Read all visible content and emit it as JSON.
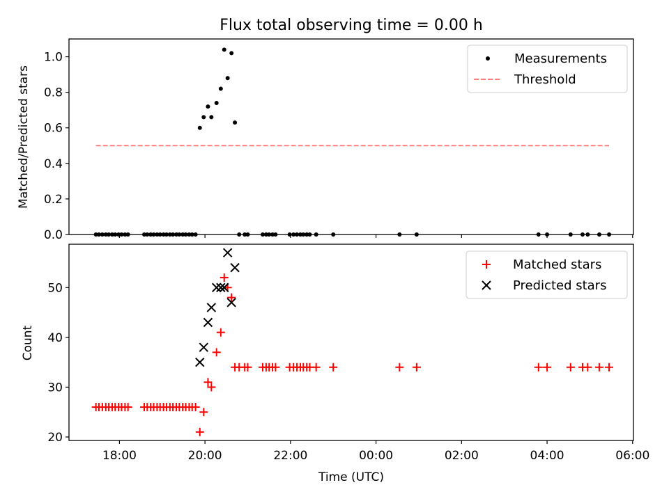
{
  "figure": {
    "title": "Flux total observing time = 0.00 h",
    "shared_xlabel": "Time (UTC)",
    "x_tick_labels": [
      "18:00",
      "20:00",
      "22:00",
      "00:00",
      "02:00",
      "04:00",
      "06:00"
    ]
  },
  "chart_data": [
    {
      "type": "scatter",
      "title": "Flux total observing time = 0.00 h",
      "xlabel": "",
      "ylabel": "Matched/Predicted stars",
      "x_unit": "hours since 00:00 UTC (negative = previous evening)",
      "xlim": [
        -7.18,
        6.02
      ],
      "ylim": [
        0.0,
        1.1
      ],
      "y_ticks": [
        0.0,
        0.2,
        0.4,
        0.6,
        0.8,
        1.0
      ],
      "y_tick_labels": [
        "0.0",
        "0.2",
        "0.4",
        "0.6",
        "0.8",
        "1.0"
      ],
      "grid": false,
      "legend_position": "top-right",
      "series": [
        {
          "name": "Measurements",
          "kind": "points",
          "color": "#000000",
          "points": [
            [
              -6.55,
              0.0
            ],
            [
              -6.48,
              0.0
            ],
            [
              -6.4,
              0.0
            ],
            [
              -6.32,
              0.0
            ],
            [
              -6.25,
              0.0
            ],
            [
              -6.17,
              0.0
            ],
            [
              -6.1,
              0.0
            ],
            [
              -6.02,
              0.0
            ],
            [
              -5.95,
              0.0
            ],
            [
              -5.87,
              0.0
            ],
            [
              -5.8,
              0.0
            ],
            [
              -5.42,
              0.0
            ],
            [
              -5.35,
              0.0
            ],
            [
              -5.27,
              0.0
            ],
            [
              -5.2,
              0.0
            ],
            [
              -5.12,
              0.0
            ],
            [
              -5.05,
              0.0
            ],
            [
              -4.97,
              0.0
            ],
            [
              -4.9,
              0.0
            ],
            [
              -4.82,
              0.0
            ],
            [
              -4.75,
              0.0
            ],
            [
              -4.67,
              0.0
            ],
            [
              -4.6,
              0.0
            ],
            [
              -4.52,
              0.0
            ],
            [
              -4.45,
              0.0
            ],
            [
              -4.37,
              0.0
            ],
            [
              -4.3,
              0.0
            ],
            [
              -4.22,
              0.0
            ],
            [
              -4.12,
              0.6
            ],
            [
              -4.03,
              0.66
            ],
            [
              -3.93,
              0.72
            ],
            [
              -3.85,
              0.66
            ],
            [
              -3.73,
              0.74
            ],
            [
              -3.63,
              0.82
            ],
            [
              -3.55,
              1.04
            ],
            [
              -3.47,
              0.88
            ],
            [
              -3.38,
              1.02
            ],
            [
              -3.3,
              0.63
            ],
            [
              -3.2,
              0.0
            ],
            [
              -3.07,
              0.0
            ],
            [
              -3.0,
              0.0
            ],
            [
              -2.65,
              0.0
            ],
            [
              -2.57,
              0.0
            ],
            [
              -2.5,
              0.0
            ],
            [
              -2.42,
              0.0
            ],
            [
              -2.35,
              0.0
            ],
            [
              -2.02,
              0.0
            ],
            [
              -1.93,
              0.0
            ],
            [
              -1.85,
              0.0
            ],
            [
              -1.77,
              0.0
            ],
            [
              -1.7,
              0.0
            ],
            [
              -1.62,
              0.0
            ],
            [
              -1.55,
              0.0
            ],
            [
              -1.4,
              0.0
            ],
            [
              -1.0,
              0.0
            ],
            [
              0.55,
              0.0
            ],
            [
              0.95,
              0.0
            ],
            [
              3.8,
              0.0
            ],
            [
              4.0,
              0.0
            ],
            [
              4.55,
              0.0
            ],
            [
              4.83,
              0.0
            ],
            [
              4.95,
              0.0
            ],
            [
              5.22,
              0.0
            ],
            [
              5.45,
              0.0
            ]
          ]
        },
        {
          "name": "Threshold",
          "kind": "dashed-line",
          "color": "#ff7f7f",
          "x": [
            -6.55,
            5.45
          ],
          "y": [
            0.5,
            0.5
          ]
        }
      ]
    },
    {
      "type": "scatter",
      "xlabel": "Time (UTC)",
      "ylabel": "Count",
      "x_unit": "hours since 00:00 UTC (negative = previous evening)",
      "xlim": [
        -7.18,
        6.02
      ],
      "ylim": [
        19.3,
        58.7
      ],
      "x_ticks": [
        -6,
        -4,
        -2,
        0,
        2,
        4,
        6
      ],
      "x_tick_labels": [
        "18:00",
        "20:00",
        "22:00",
        "00:00",
        "02:00",
        "04:00",
        "06:00"
      ],
      "y_ticks": [
        20,
        30,
        40,
        50
      ],
      "y_tick_labels": [
        "20",
        "30",
        "40",
        "50"
      ],
      "grid": false,
      "legend_position": "top-right",
      "series": [
        {
          "name": "Matched stars",
          "kind": "plus-markers",
          "color": "#ff0000",
          "points": [
            [
              -6.55,
              26
            ],
            [
              -6.48,
              26
            ],
            [
              -6.4,
              26
            ],
            [
              -6.32,
              26
            ],
            [
              -6.25,
              26
            ],
            [
              -6.17,
              26
            ],
            [
              -6.1,
              26
            ],
            [
              -6.02,
              26
            ],
            [
              -5.95,
              26
            ],
            [
              -5.87,
              26
            ],
            [
              -5.8,
              26
            ],
            [
              -5.42,
              26
            ],
            [
              -5.35,
              26
            ],
            [
              -5.27,
              26
            ],
            [
              -5.2,
              26
            ],
            [
              -5.12,
              26
            ],
            [
              -5.05,
              26
            ],
            [
              -4.97,
              26
            ],
            [
              -4.9,
              26
            ],
            [
              -4.82,
              26
            ],
            [
              -4.75,
              26
            ],
            [
              -4.67,
              26
            ],
            [
              -4.6,
              26
            ],
            [
              -4.52,
              26
            ],
            [
              -4.45,
              26
            ],
            [
              -4.37,
              26
            ],
            [
              -4.3,
              26
            ],
            [
              -4.22,
              26
            ],
            [
              -4.12,
              21
            ],
            [
              -4.03,
              25
            ],
            [
              -3.93,
              31
            ],
            [
              -3.85,
              30
            ],
            [
              -3.73,
              37
            ],
            [
              -3.63,
              41
            ],
            [
              -3.55,
              52
            ],
            [
              -3.47,
              50
            ],
            [
              -3.38,
              48
            ],
            [
              -3.3,
              34
            ],
            [
              -3.2,
              34
            ],
            [
              -3.07,
              34
            ],
            [
              -3.0,
              34
            ],
            [
              -2.65,
              34
            ],
            [
              -2.57,
              34
            ],
            [
              -2.5,
              34
            ],
            [
              -2.42,
              34
            ],
            [
              -2.35,
              34
            ],
            [
              -2.02,
              34
            ],
            [
              -1.93,
              34
            ],
            [
              -1.85,
              34
            ],
            [
              -1.77,
              34
            ],
            [
              -1.7,
              34
            ],
            [
              -1.62,
              34
            ],
            [
              -1.55,
              34
            ],
            [
              -1.4,
              34
            ],
            [
              -1.0,
              34
            ],
            [
              0.55,
              34
            ],
            [
              0.95,
              34
            ],
            [
              3.8,
              34
            ],
            [
              4.0,
              34
            ],
            [
              4.55,
              34
            ],
            [
              4.83,
              34
            ],
            [
              4.95,
              34
            ],
            [
              5.22,
              34
            ],
            [
              5.45,
              34
            ]
          ]
        },
        {
          "name": "Predicted stars",
          "kind": "x-markers",
          "color": "#000000",
          "points": [
            [
              -4.12,
              35
            ],
            [
              -4.03,
              38
            ],
            [
              -3.93,
              43
            ],
            [
              -3.85,
              46
            ],
            [
              -3.73,
              50
            ],
            [
              -3.63,
              50
            ],
            [
              -3.55,
              50
            ],
            [
              -3.47,
              57
            ],
            [
              -3.38,
              47
            ],
            [
              -3.3,
              54
            ]
          ]
        }
      ]
    }
  ]
}
